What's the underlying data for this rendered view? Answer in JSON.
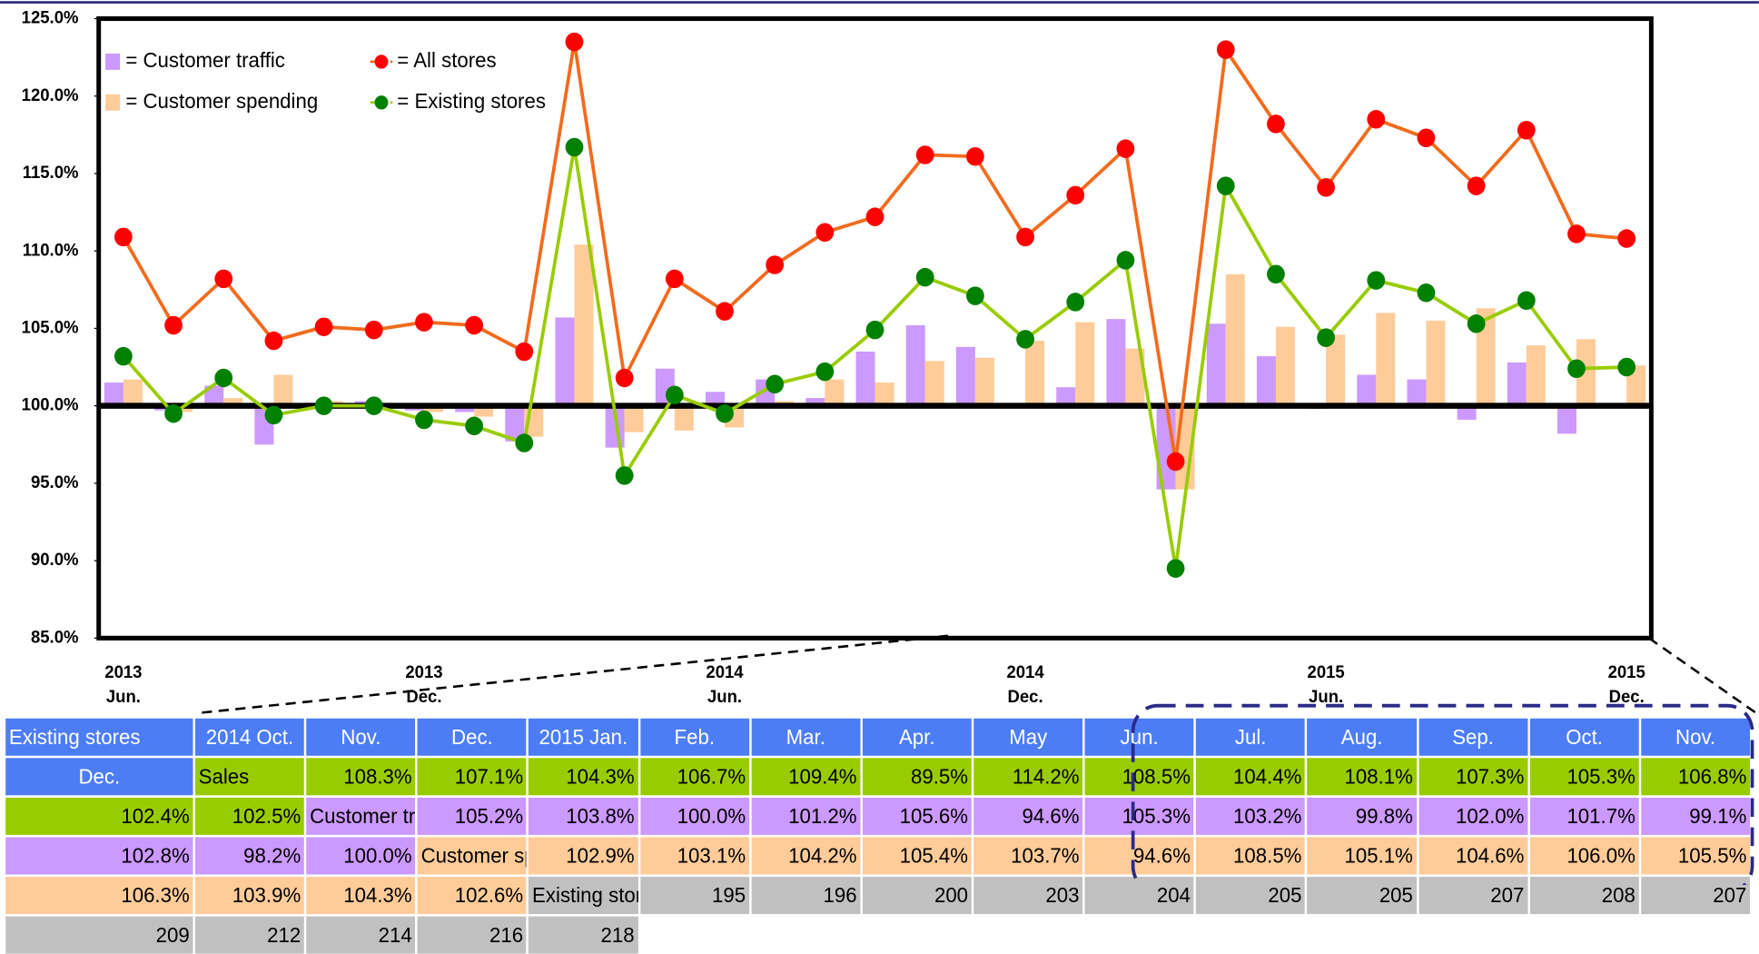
{
  "chart_data": {
    "type": "bar",
    "categories": [
      "2013 Jun.",
      null,
      null,
      null,
      null,
      null,
      "2013 Dec.",
      null,
      null,
      null,
      null,
      null,
      "2014 Jun.",
      null,
      null,
      null,
      null,
      null,
      "2014 Dec.",
      null,
      null,
      null,
      null,
      null,
      "2015 Jun.",
      null,
      null,
      null,
      null,
      null,
      "2015 Dec."
    ],
    "series": [
      {
        "name": "= Customer traffic",
        "type": "bar",
        "color": "#cc99ff",
        "values": [
          101.5,
          99.7,
          101.3,
          97.5,
          100.2,
          100.3,
          99.7,
          99.6,
          97.7,
          105.7,
          97.3,
          102.4,
          100.9,
          101.7,
          100.5,
          103.5,
          105.2,
          103.8,
          100.0,
          101.2,
          105.6,
          94.6,
          105.3,
          103.2,
          99.8,
          102.0,
          101.7,
          99.1,
          102.8,
          98.2,
          100.0
        ]
      },
      {
        "name": "= Customer spending",
        "type": "bar",
        "color": "#ffcc99",
        "values": [
          101.7,
          99.6,
          100.5,
          102.0,
          100.3,
          100.1,
          99.6,
          99.3,
          98.0,
          110.4,
          98.3,
          98.4,
          98.6,
          100.3,
          101.7,
          101.5,
          102.9,
          103.1,
          104.2,
          105.4,
          103.7,
          94.6,
          108.5,
          105.1,
          104.6,
          106.0,
          105.5,
          106.3,
          103.9,
          104.3,
          102.6
        ]
      },
      {
        "name": "= All stores",
        "type": "line",
        "color": "#f26b1d",
        "marker_color": "#ff0000",
        "values": [
          110.9,
          105.2,
          108.2,
          104.2,
          105.1,
          104.9,
          105.4,
          105.2,
          103.5,
          123.5,
          101.8,
          108.2,
          106.1,
          109.1,
          111.2,
          112.2,
          116.2,
          116.1,
          110.9,
          113.6,
          116.6,
          96.4,
          123.0,
          118.2,
          114.1,
          118.5,
          117.3,
          114.2,
          117.8,
          111.1,
          110.8
        ]
      },
      {
        "name": "= Existing stores",
        "type": "line",
        "color": "#99cc00",
        "marker_color": "#008000",
        "values": [
          103.2,
          99.5,
          101.8,
          99.4,
          100.0,
          100.0,
          99.1,
          98.7,
          97.6,
          116.7,
          95.5,
          100.7,
          99.5,
          101.4,
          102.2,
          104.9,
          108.3,
          107.1,
          104.3,
          106.7,
          109.4,
          89.5,
          114.2,
          108.5,
          104.4,
          108.1,
          107.3,
          105.3,
          106.8,
          102.4,
          102.5
        ]
      }
    ],
    "baseline": 100,
    "ylim": [
      85,
      125
    ],
    "yticks": [
      {
        "value": 85,
        "label": "85.0%"
      },
      {
        "value": 90,
        "label": "90.0%"
      },
      {
        "value": 95,
        "label": "95.0%"
      },
      {
        "value": 100,
        "label": "100.0%"
      },
      {
        "value": 105,
        "label": "105.0%"
      },
      {
        "value": 110,
        "label": "110.0%"
      },
      {
        "value": 115,
        "label": "115.0%"
      },
      {
        "value": 120,
        "label": "120.0%"
      },
      {
        "value": 125,
        "label": "125.0%"
      }
    ]
  },
  "table": {
    "columns": [
      "Existing stores",
      "2014 Oct.",
      "Nov.",
      "Dec.",
      "2015  Jan.",
      "Feb.",
      "Mar.",
      "Apr.",
      "May",
      "Jun.",
      "Jul.",
      "Aug.",
      "Sep.",
      "Oct.",
      "Nov.",
      "Dec."
    ],
    "rows": [
      {
        "label": "Sales",
        "color": "#99cc00",
        "cells": [
          "108.3%",
          "107.1%",
          "104.3%",
          "106.7%",
          "109.4%",
          "89.5%",
          "114.2%",
          "108.5%",
          "104.4%",
          "108.1%",
          "107.3%",
          "105.3%",
          "106.8%",
          "102.4%",
          "102.5%"
        ]
      },
      {
        "label": "Customer traffic",
        "color": "#cc99ff",
        "cells": [
          "105.2%",
          "103.8%",
          "100.0%",
          "101.2%",
          "105.6%",
          "94.6%",
          "105.3%",
          "103.2%",
          "99.8%",
          "102.0%",
          "101.7%",
          "99.1%",
          "102.8%",
          "98.2%",
          "100.0%"
        ]
      },
      {
        "label": "Customer spending",
        "color": "#ffcc99",
        "cells": [
          "102.9%",
          "103.1%",
          "104.2%",
          "105.4%",
          "103.7%",
          "94.6%",
          "108.5%",
          "105.1%",
          "104.6%",
          "106.0%",
          "105.5%",
          "106.3%",
          "103.9%",
          "104.3%",
          "102.6%"
        ]
      },
      {
        "label": "Existing store count",
        "color": "#c0c0c0",
        "cells": [
          "195",
          "196",
          "200",
          "203",
          "204",
          "205",
          "205",
          "207",
          "208",
          "207",
          "209",
          "212",
          "214",
          "216",
          "218"
        ]
      }
    ]
  }
}
